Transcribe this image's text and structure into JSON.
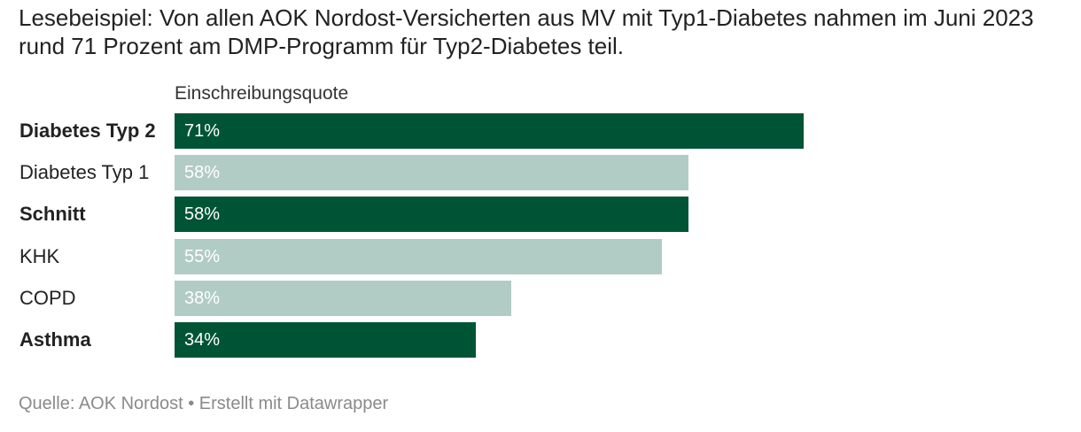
{
  "subtitle": "Lesebeispiel: Von allen AOK Nordost-Versicherten aus MV mit Typ1-Diabetes nahmen im Juni 2023 rund 71 Prozent am DMP-Programm für Typ2-Diabetes teil.",
  "footer": "Quelle: AOK Nordost • Erstellt mit Datawrapper",
  "colors": {
    "dark_green": "#005436",
    "light_green": "#b1ccc4",
    "text": "#222222",
    "footer_text": "#8a8a8a"
  },
  "chart_data": {
    "type": "bar",
    "orientation": "horizontal",
    "column_header": "Einschreibungsquote",
    "xlim": [
      0,
      100
    ],
    "categories": [
      "Diabetes Typ 2",
      "Diabetes Typ 1",
      "Schnitt",
      "KHK",
      "COPD",
      "Asthma"
    ],
    "values": [
      71,
      58,
      58,
      55,
      38,
      34
    ],
    "value_labels": [
      "71%",
      "58%",
      "58%",
      "55%",
      "38%",
      "34%"
    ],
    "highlighted": [
      true,
      false,
      true,
      false,
      false,
      true
    ]
  }
}
